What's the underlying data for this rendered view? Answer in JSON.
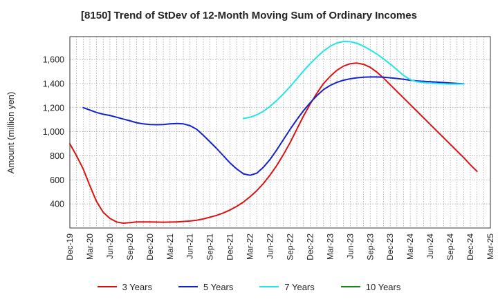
{
  "chart_data": {
    "type": "line",
    "title": "[8150]  Trend of StDev of 12-Month Moving Sum of Ordinary Incomes",
    "xlabel": "",
    "ylabel": "Amount (million yen)",
    "ylim": [
      200,
      1790
    ],
    "yticks": [
      400,
      600,
      800,
      1000,
      1200,
      1400,
      1600
    ],
    "ytick_labels": [
      "400",
      "600",
      "800",
      "1,000",
      "1,200",
      "1,400",
      "1,600"
    ],
    "x_range": [
      0,
      63
    ],
    "xticks": [
      0,
      3,
      6,
      9,
      12,
      15,
      18,
      21,
      24,
      27,
      30,
      33,
      36,
      39,
      42,
      45,
      48,
      51,
      54,
      57,
      60,
      63
    ],
    "xtick_labels": [
      "Dec-19",
      "Mar-20",
      "Jun-20",
      "Sep-20",
      "Dec-20",
      "Mar-21",
      "Jun-21",
      "Sep-21",
      "Dec-21",
      "Mar-22",
      "Jun-22",
      "Sep-22",
      "Dec-22",
      "Mar-23",
      "Jun-23",
      "Sep-23",
      "Dec-23",
      "Mar-24",
      "Jun-24",
      "Sep-24",
      "Dec-24",
      "Mar-25"
    ],
    "grid": true,
    "legend_position": "bottom",
    "series": [
      {
        "name": "3 Years",
        "color": "#dd1111",
        "points": [
          [
            0,
            900
          ],
          [
            1,
            800
          ],
          [
            2,
            690
          ],
          [
            3,
            550
          ],
          [
            4,
            420
          ],
          [
            5,
            330
          ],
          [
            6,
            280
          ],
          [
            7,
            250
          ],
          [
            8,
            240
          ],
          [
            9,
            245
          ],
          [
            10,
            250
          ],
          [
            12,
            250
          ],
          [
            14,
            248
          ],
          [
            16,
            250
          ],
          [
            18,
            258
          ],
          [
            19,
            265
          ],
          [
            20,
            275
          ],
          [
            21,
            290
          ],
          [
            22,
            305
          ],
          [
            23,
            325
          ],
          [
            24,
            350
          ],
          [
            25,
            380
          ],
          [
            26,
            415
          ],
          [
            27,
            460
          ],
          [
            28,
            510
          ],
          [
            29,
            570
          ],
          [
            30,
            640
          ],
          [
            31,
            720
          ],
          [
            32,
            810
          ],
          [
            33,
            910
          ],
          [
            34,
            1020
          ],
          [
            35,
            1130
          ],
          [
            36,
            1230
          ],
          [
            37,
            1320
          ],
          [
            38,
            1400
          ],
          [
            39,
            1460
          ],
          [
            40,
            1510
          ],
          [
            41,
            1545
          ],
          [
            42,
            1565
          ],
          [
            43,
            1570
          ],
          [
            44,
            1560
          ],
          [
            45,
            1535
          ],
          [
            46,
            1495
          ],
          [
            47,
            1445
          ],
          [
            48,
            1390
          ],
          [
            49,
            1335
          ],
          [
            50,
            1280
          ],
          [
            51,
            1225
          ],
          [
            52,
            1170
          ],
          [
            53,
            1115
          ],
          [
            54,
            1060
          ],
          [
            55,
            1005
          ],
          [
            56,
            950
          ],
          [
            57,
            895
          ],
          [
            58,
            840
          ],
          [
            59,
            785
          ],
          [
            60,
            725
          ],
          [
            61,
            670
          ]
        ]
      },
      {
        "name": "5 Years",
        "color": "#1122cc",
        "points": [
          [
            2,
            1200
          ],
          [
            3,
            1180
          ],
          [
            4,
            1160
          ],
          [
            5,
            1145
          ],
          [
            6,
            1135
          ],
          [
            7,
            1120
          ],
          [
            8,
            1105
          ],
          [
            9,
            1090
          ],
          [
            10,
            1075
          ],
          [
            11,
            1065
          ],
          [
            12,
            1060
          ],
          [
            13,
            1058
          ],
          [
            14,
            1060
          ],
          [
            15,
            1065
          ],
          [
            16,
            1068
          ],
          [
            17,
            1065
          ],
          [
            18,
            1050
          ],
          [
            19,
            1020
          ],
          [
            20,
            970
          ],
          [
            21,
            915
          ],
          [
            22,
            860
          ],
          [
            23,
            800
          ],
          [
            24,
            740
          ],
          [
            25,
            690
          ],
          [
            26,
            650
          ],
          [
            27,
            638
          ],
          [
            28,
            655
          ],
          [
            29,
            705
          ],
          [
            30,
            770
          ],
          [
            31,
            850
          ],
          [
            32,
            935
          ],
          [
            33,
            1020
          ],
          [
            34,
            1100
          ],
          [
            35,
            1175
          ],
          [
            36,
            1240
          ],
          [
            37,
            1300
          ],
          [
            38,
            1350
          ],
          [
            39,
            1385
          ],
          [
            40,
            1410
          ],
          [
            41,
            1428
          ],
          [
            42,
            1440
          ],
          [
            43,
            1448
          ],
          [
            44,
            1453
          ],
          [
            45,
            1455
          ],
          [
            46,
            1455
          ],
          [
            47,
            1453
          ],
          [
            48,
            1448
          ],
          [
            49,
            1442
          ],
          [
            50,
            1435
          ],
          [
            51,
            1428
          ],
          [
            52,
            1422
          ],
          [
            53,
            1418
          ],
          [
            54,
            1415
          ],
          [
            55,
            1412
          ],
          [
            56,
            1408
          ],
          [
            57,
            1405
          ],
          [
            58,
            1401
          ],
          [
            59,
            1398
          ]
        ]
      },
      {
        "name": "7 Years",
        "color": "#22e5e5",
        "points": [
          [
            26,
            1110
          ],
          [
            27,
            1120
          ],
          [
            28,
            1140
          ],
          [
            29,
            1170
          ],
          [
            30,
            1210
          ],
          [
            31,
            1260
          ],
          [
            32,
            1315
          ],
          [
            33,
            1375
          ],
          [
            34,
            1440
          ],
          [
            35,
            1505
          ],
          [
            36,
            1565
          ],
          [
            37,
            1620
          ],
          [
            38,
            1670
          ],
          [
            39,
            1710
          ],
          [
            40,
            1738
          ],
          [
            41,
            1750
          ],
          [
            42,
            1748
          ],
          [
            43,
            1735
          ],
          [
            44,
            1710
          ],
          [
            45,
            1680
          ],
          [
            46,
            1645
          ],
          [
            47,
            1605
          ],
          [
            48,
            1562
          ],
          [
            49,
            1515
          ],
          [
            50,
            1468
          ],
          [
            51,
            1432
          ],
          [
            52,
            1415
          ],
          [
            53,
            1408
          ],
          [
            54,
            1404
          ],
          [
            55,
            1400
          ],
          [
            56,
            1398
          ],
          [
            57,
            1396
          ],
          [
            58,
            1396
          ],
          [
            59,
            1397
          ]
        ]
      },
      {
        "name": "10 Years",
        "color": "#118811",
        "points": []
      }
    ]
  }
}
